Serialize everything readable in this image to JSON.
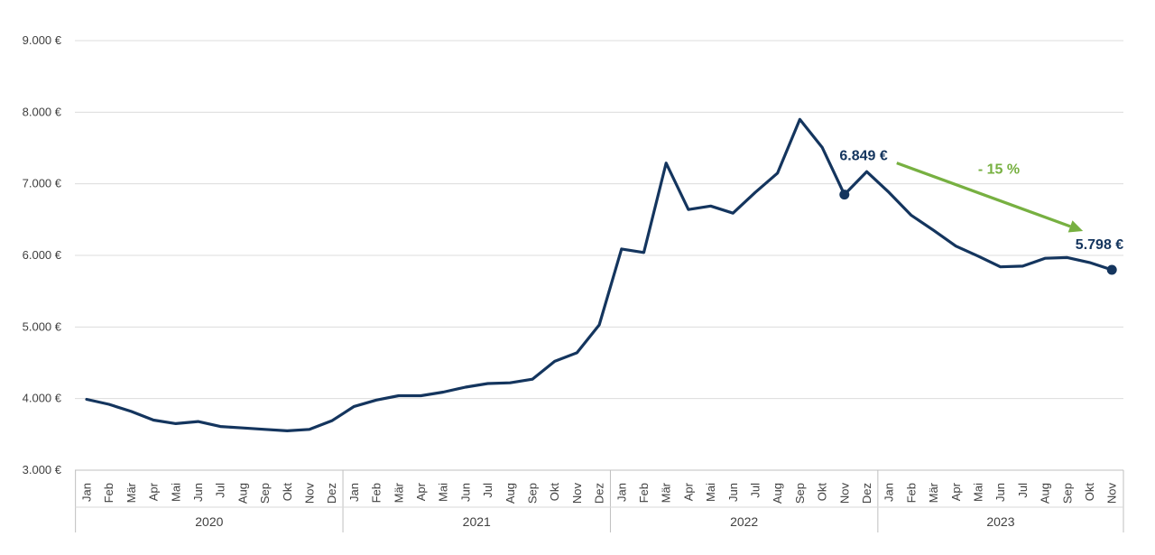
{
  "chart_data": {
    "type": "line",
    "y_ticks": [
      "3.000 €",
      "4.000 €",
      "5.000 €",
      "6.000 €",
      "7.000 €",
      "8.000 €",
      "9.000 €"
    ],
    "ylim": [
      3000,
      9000
    ],
    "grid": true,
    "years": [
      {
        "label": "2020",
        "months": [
          "Jan",
          "Feb",
          "Mär",
          "Apr",
          "Mai",
          "Jun",
          "Jul",
          "Aug",
          "Sep",
          "Okt",
          "Nov",
          "Dez"
        ]
      },
      {
        "label": "2021",
        "months": [
          "Jan",
          "Feb",
          "Mär",
          "Apr",
          "Mai",
          "Jun",
          "Jul",
          "Aug",
          "Sep",
          "Okt",
          "Nov",
          "Dez"
        ]
      },
      {
        "label": "2022",
        "months": [
          "Jan",
          "Feb",
          "Mär",
          "Apr",
          "Mai",
          "Jun",
          "Jul",
          "Aug",
          "Sep",
          "Okt",
          "Nov",
          "Dez"
        ]
      },
      {
        "label": "2023",
        "months": [
          "Jan",
          "Feb",
          "Mär",
          "Apr",
          "Mai",
          "Jun",
          "Jul",
          "Aug",
          "Sep",
          "Okt",
          "Nov"
        ]
      }
    ],
    "series": [
      {
        "color": "#14355e",
        "values": [
          3990,
          3920,
          3820,
          3700,
          3650,
          3680,
          3610,
          3590,
          3570,
          3550,
          3570,
          3690,
          3890,
          3980,
          4040,
          4040,
          4090,
          4160,
          4210,
          4220,
          4270,
          4520,
          4640,
          5030,
          6090,
          6040,
          7290,
          6640,
          6690,
          6590,
          6880,
          7150,
          7900,
          7510,
          6849,
          7170,
          6880,
          6560,
          6350,
          6130,
          5990,
          5840,
          5850,
          5960,
          5970,
          5900,
          5798
        ]
      }
    ],
    "annotations": {
      "start_label": "6.849 €",
      "end_label": "5.798 €",
      "change_label": "- 15 %",
      "start_index": 34,
      "end_index": 46,
      "label_color": "#14355e",
      "change_color": "#77b041"
    }
  }
}
